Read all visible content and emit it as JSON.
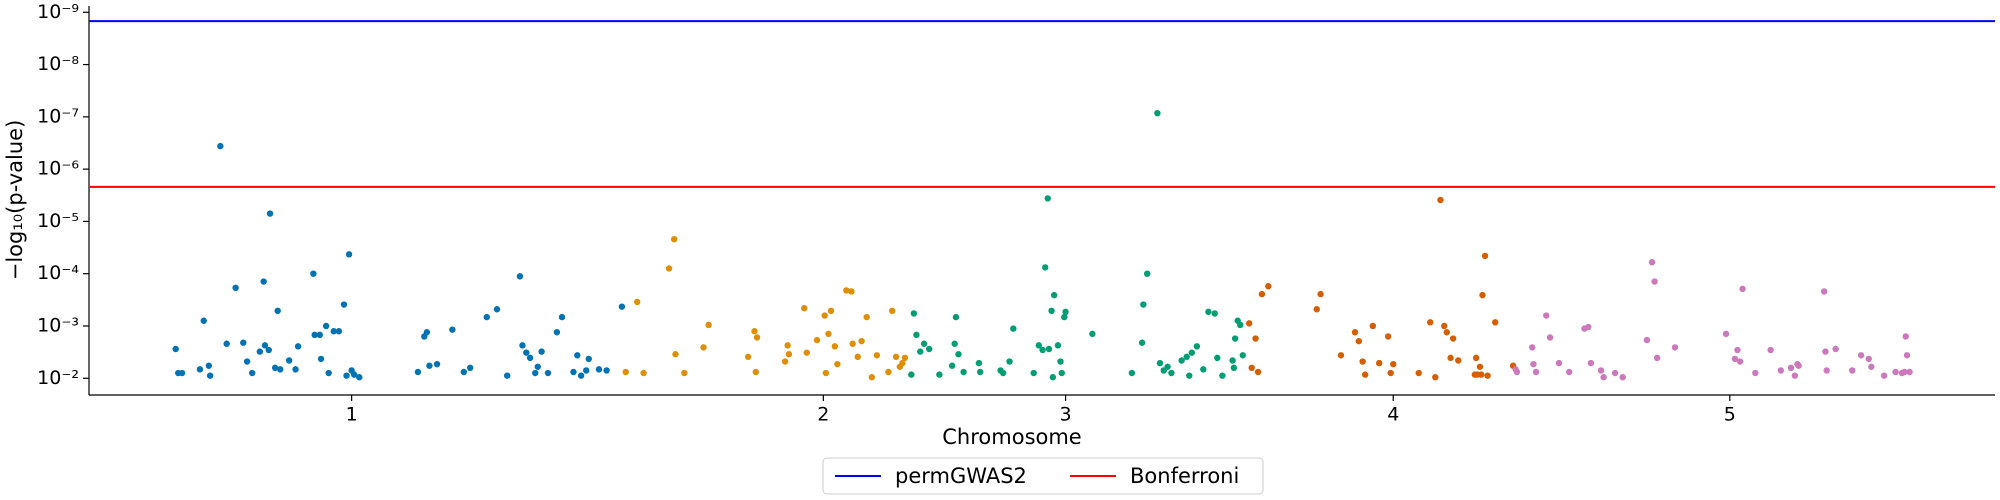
{
  "chart_data": {
    "type": "scatter",
    "xlabel": "Chromosome",
    "ylabel": "−log₁₀(p-value)",
    "xlim": [
      0,
      1495
    ],
    "ylim": [
      1.68,
      9.12
    ],
    "xticks": [
      {
        "value": 206,
        "label": "1"
      },
      {
        "value": 576,
        "label": "2"
      },
      {
        "value": 766,
        "label": "3"
      },
      {
        "value": 1023,
        "label": "4"
      },
      {
        "value": 1287,
        "label": "5"
      }
    ],
    "yticks": [
      {
        "value": 2,
        "label": "10⁻²"
      },
      {
        "value": 3,
        "label": "10⁻³"
      },
      {
        "value": 4,
        "label": "10⁻⁴"
      },
      {
        "value": 5,
        "label": "10⁻⁵"
      },
      {
        "value": 6,
        "label": "10⁻⁶"
      },
      {
        "value": 7,
        "label": "10⁻⁷"
      },
      {
        "value": 8,
        "label": "10⁻⁸"
      },
      {
        "value": 9,
        "label": "10⁻⁹"
      }
    ],
    "legend": "below",
    "hlines": [
      {
        "name": "permGWAS2",
        "value": 8.83,
        "color": "#0000ff"
      },
      {
        "name": "Bonferroni",
        "value": 5.66,
        "color": "#ff0000"
      }
    ],
    "series": [
      {
        "color": "#0173b2",
        "x": [
          68,
          70,
          73,
          87,
          90,
          94,
          95,
          103,
          108,
          115,
          121,
          124,
          128,
          134,
          137,
          138,
          141,
          142,
          146,
          148,
          150,
          157,
          162,
          164,
          176,
          177,
          181,
          182,
          186,
          188,
          192,
          196,
          200,
          202,
          204,
          206,
          208,
          212,
          258,
          263,
          265,
          267,
          273,
          285,
          294,
          299,
          312,
          320,
          328,
          338,
          340,
          343,
          346,
          350,
          352,
          355,
          360,
          367,
          371,
          380,
          383,
          386,
          390,
          392,
          400,
          406,
          418
        ],
        "values": [
          2.56,
          2.1,
          2.1,
          2.17,
          3.1,
          2.24,
          2.05,
          6.44,
          2.66,
          3.73,
          2.68,
          2.32,
          2.1,
          2.51,
          3.85,
          2.63,
          2.54,
          5.15,
          2.2,
          3.29,
          2.17,
          2.34,
          2.17,
          2.61,
          4.0,
          2.83,
          2.83,
          2.37,
          3.0,
          2.1,
          2.9,
          2.9,
          3.41,
          2.05,
          4.37,
          2.15,
          2.07,
          2.02,
          2.12,
          2.8,
          2.88,
          2.24,
          2.27,
          2.93,
          2.12,
          2.2,
          3.17,
          3.32,
          2.05,
          3.95,
          2.63,
          2.49,
          2.39,
          2.1,
          2.22,
          2.51,
          2.1,
          2.88,
          3.17,
          2.12,
          2.44,
          2.05,
          2.15,
          2.37,
          2.17,
          2.15,
          3.37
        ]
      },
      {
        "color": "#de8f05",
        "x": [
          421,
          430,
          435,
          455,
          459,
          460,
          467,
          482,
          486,
          517,
          522,
          523,
          524,
          546,
          548,
          549,
          561,
          563,
          571,
          577,
          578,
          580,
          582,
          585,
          587,
          594,
          598,
          599,
          603,
          606,
          610,
          614,
          618,
          627,
          630,
          633,
          636,
          638,
          640
        ],
        "values": [
          2.12,
          3.46,
          2.1,
          4.1,
          4.66,
          2.46,
          2.1,
          2.59,
          3.02,
          2.41,
          2.9,
          2.12,
          2.78,
          2.32,
          2.63,
          2.46,
          3.34,
          2.49,
          2.73,
          3.2,
          2.1,
          2.85,
          3.29,
          2.61,
          2.27,
          3.68,
          3.66,
          2.66,
          2.41,
          2.71,
          3.17,
          2.02,
          2.44,
          2.12,
          3.29,
          2.41,
          2.22,
          2.29,
          2.39
        ]
      },
      {
        "color": "#029e73",
        "x": [
          645,
          647,
          649,
          652,
          655,
          659,
          667,
          677,
          679,
          680,
          682,
          686,
          698,
          699,
          715,
          717,
          722,
          725,
          741,
          745,
          748,
          750,
          752,
          753,
          755,
          756,
          757,
          760,
          762,
          763,
          765,
          766,
          787,
          818,
          826,
          827,
          830,
          838,
          840,
          843,
          846,
          849,
          857,
          861,
          863,
          865,
          869,
          874,
          878,
          883,
          885,
          889,
          897,
          898,
          899,
          901,
          903,
          905
        ],
        "values": [
          2.07,
          3.24,
          2.83,
          2.51,
          2.66,
          2.56,
          2.07,
          2.24,
          2.66,
          3.17,
          2.46,
          2.12,
          2.29,
          2.12,
          2.15,
          2.1,
          2.32,
          2.95,
          2.1,
          2.63,
          2.54,
          4.12,
          5.44,
          2.56,
          3.29,
          2.02,
          3.59,
          2.63,
          2.32,
          2.1,
          3.17,
          3.27,
          2.85,
          2.1,
          2.68,
          3.41,
          4.0,
          7.07,
          2.29,
          2.15,
          2.22,
          2.1,
          2.34,
          2.41,
          2.05,
          2.49,
          2.61,
          2.17,
          3.27,
          3.24,
          2.39,
          2.05,
          2.34,
          2.2,
          2.76,
          3.1,
          3.02,
          2.44
        ]
      },
      {
        "color": "#d55e00",
        "x": [
          910,
          912,
          915,
          917,
          920,
          925,
          963,
          966,
          982,
          993,
          996,
          999,
          1001,
          1007,
          1012,
          1019,
          1021,
          1023,
          1043,
          1052,
          1056,
          1060,
          1063,
          1065,
          1068,
          1070,
          1074,
          1087,
          1088,
          1089,
          1091,
          1092,
          1093,
          1095,
          1097,
          1103,
          1117
        ],
        "values": [
          3.05,
          2.2,
          2.76,
          2.12,
          3.61,
          3.76,
          3.32,
          3.61,
          2.44,
          2.88,
          2.71,
          2.32,
          2.07,
          3.0,
          2.29,
          2.8,
          2.1,
          2.27,
          2.1,
          3.07,
          2.02,
          5.41,
          3.0,
          2.88,
          2.39,
          2.76,
          2.34,
          2.07,
          2.39,
          2.07,
          2.22,
          2.07,
          3.59,
          4.34,
          2.05,
          3.07,
          2.24
        ]
      },
      {
        "color": "#cc78bc",
        "x": [
          1119,
          1120,
          1132,
          1133,
          1135,
          1143,
          1146,
          1153,
          1161,
          1173,
          1176,
          1178,
          1186,
          1188,
          1197,
          1203,
          1222,
          1226,
          1228,
          1230,
          1244,
          1284,
          1291,
          1293,
          1295,
          1297,
          1307,
          1319,
          1327,
          1335,
          1338,
          1340,
          1341,
          1361,
          1362,
          1363,
          1370,
          1383,
          1390,
          1396,
          1398,
          1408,
          1417,
          1422,
          1424,
          1425,
          1426,
          1428
        ],
        "values": [
          2.17,
          2.12,
          2.59,
          2.27,
          2.12,
          3.2,
          2.78,
          2.29,
          2.12,
          2.95,
          2.98,
          2.29,
          2.15,
          2.02,
          2.1,
          2.02,
          2.73,
          4.22,
          3.85,
          2.39,
          2.59,
          2.85,
          2.37,
          2.54,
          2.32,
          3.71,
          2.1,
          2.54,
          2.15,
          2.2,
          2.05,
          2.27,
          2.24,
          3.66,
          2.51,
          2.15,
          2.56,
          2.15,
          2.44,
          2.37,
          2.22,
          2.05,
          2.12,
          2.1,
          2.12,
          2.8,
          2.44,
          2.12
        ]
      }
    ]
  }
}
